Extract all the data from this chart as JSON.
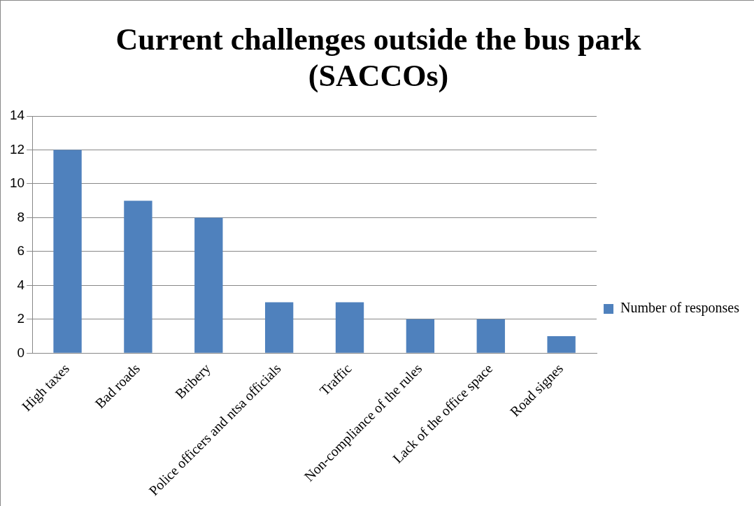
{
  "chart_data": {
    "type": "bar",
    "title": "Current challenges outside the bus park (SACCOs)",
    "categories": [
      "High taxes",
      "Bad roads",
      "Bribery",
      "Police officers and ntsa officials",
      "Traffic",
      "Non-compliance of the rules",
      "Lack of the office space",
      "Road signes"
    ],
    "series": [
      {
        "name": "Number of responses",
        "color": "#4f81bd",
        "values": [
          12,
          9,
          8,
          3,
          3,
          2,
          2,
          1
        ]
      }
    ],
    "ylim": [
      0,
      14
    ],
    "yticks": [
      0,
      2,
      4,
      6,
      8,
      10,
      12,
      14
    ],
    "grid": "y",
    "legend": "right"
  }
}
